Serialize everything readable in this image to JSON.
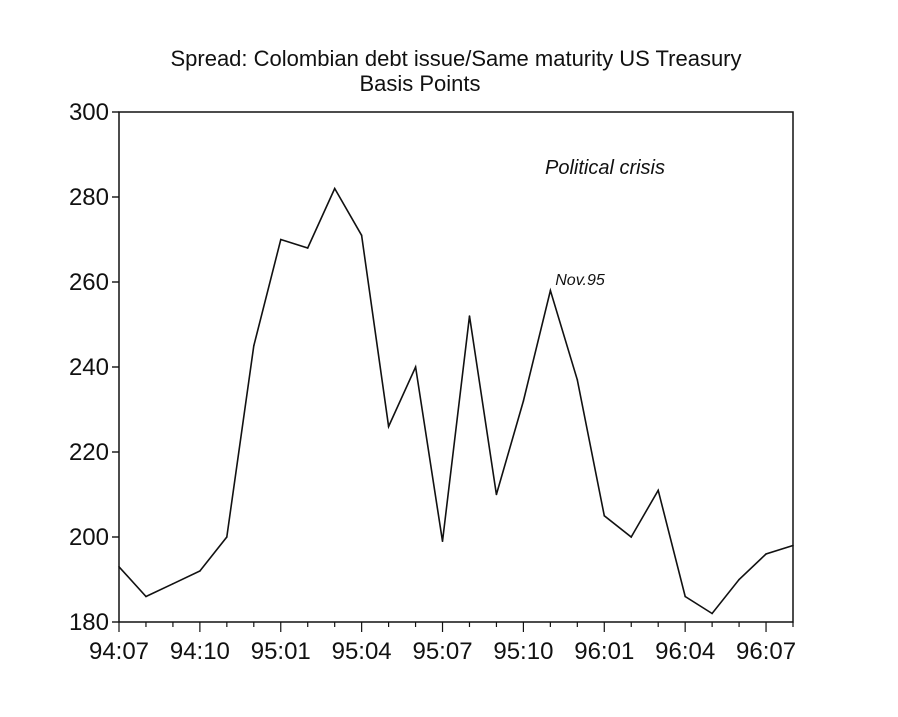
{
  "chart_data": {
    "type": "line",
    "title": "Spread: Colombian debt issue/Same maturity US Treasury",
    "subtitle": "Basis Points",
    "xlabel": "",
    "ylabel": "",
    "ylim": [
      180,
      300
    ],
    "yticks": [
      180,
      200,
      220,
      240,
      260,
      280,
      300
    ],
    "xticks": [
      "94:07",
      "94:10",
      "95:01",
      "95:04",
      "95:07",
      "95:10",
      "96:01",
      "96:04",
      "96:07"
    ],
    "x": [
      "94:07",
      "94:08",
      "94:09",
      "94:10",
      "94:11",
      "94:12",
      "95:01",
      "95:02",
      "95:03",
      "95:04",
      "95:05",
      "95:06",
      "95:07",
      "95:08",
      "95:09",
      "95:10",
      "95:11",
      "95:12",
      "96:01",
      "96:02",
      "96:03",
      "96:04",
      "96:05",
      "96:06",
      "96:07",
      "96:08"
    ],
    "series": [
      {
        "values": [
          193,
          186,
          189,
          192,
          200,
          245,
          270,
          268,
          282,
          271,
          226,
          240,
          199,
          252,
          210,
          232,
          258,
          237,
          205,
          200,
          211,
          186,
          182,
          190,
          196,
          198
        ],
        "color": "#111111"
      }
    ],
    "annotations": [
      {
        "text": "Political crisis"
      },
      {
        "text": "Nov.95",
        "x": "95:11",
        "y": 258
      }
    ],
    "grid": false,
    "legend": "none"
  }
}
